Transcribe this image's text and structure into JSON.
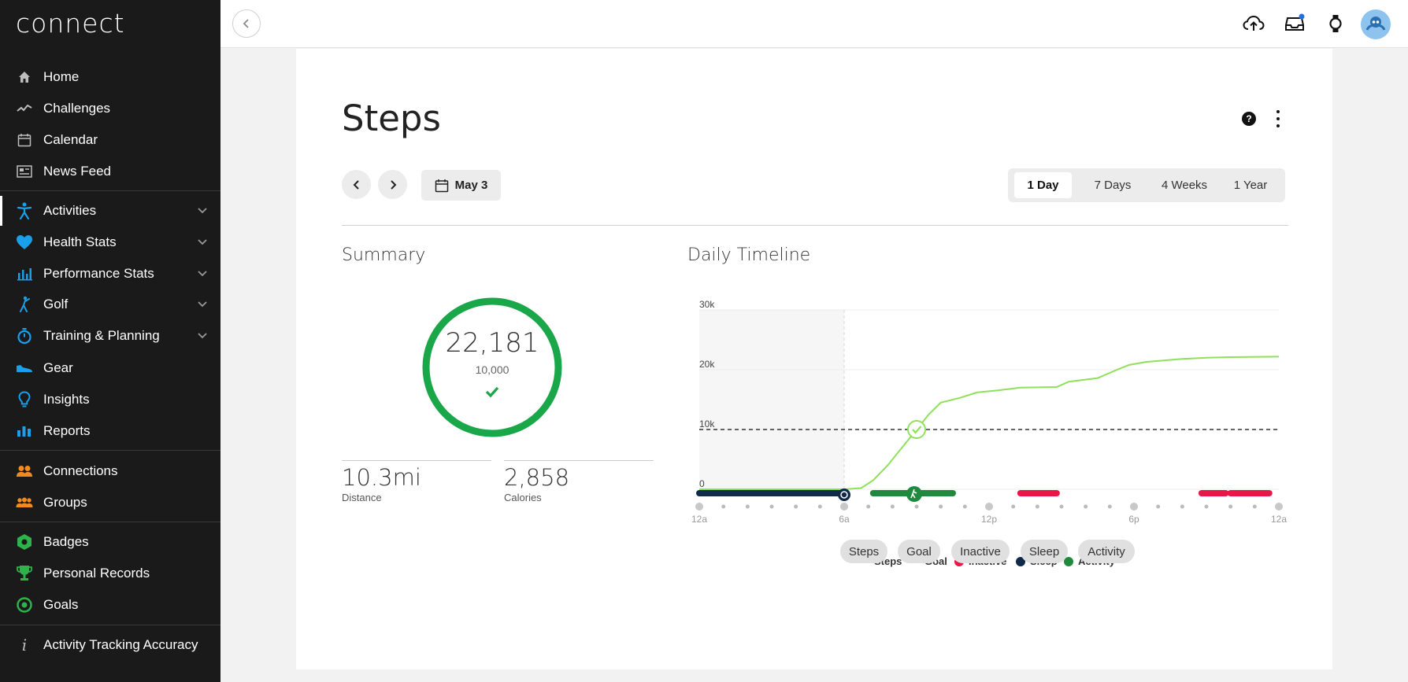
{
  "brand": "connect",
  "sidebar": {
    "items": [
      {
        "label": "Home",
        "icon": "home-icon"
      },
      {
        "label": "Challenges",
        "icon": "challenges-icon"
      },
      {
        "label": "Calendar",
        "icon": "calendar-icon"
      },
      {
        "label": "News Feed",
        "icon": "news-feed-icon"
      },
      {
        "label": "Activities",
        "icon": "activities-icon",
        "expandable": true,
        "active": true
      },
      {
        "label": "Health Stats",
        "icon": "heart-icon",
        "expandable": true
      },
      {
        "label": "Performance Stats",
        "icon": "bar-chart-icon",
        "expandable": true
      },
      {
        "label": "Golf",
        "icon": "golf-icon",
        "expandable": true
      },
      {
        "label": "Training & Planning",
        "icon": "stopwatch-icon",
        "expandable": true
      },
      {
        "label": "Gear",
        "icon": "shoe-icon"
      },
      {
        "label": "Insights",
        "icon": "lightbulb-icon"
      },
      {
        "label": "Reports",
        "icon": "reports-icon"
      },
      {
        "label": "Connections",
        "icon": "connections-icon"
      },
      {
        "label": "Groups",
        "icon": "groups-icon"
      },
      {
        "label": "Badges",
        "icon": "badge-icon"
      },
      {
        "label": "Personal Records",
        "icon": "trophy-icon"
      },
      {
        "label": "Goals",
        "icon": "target-icon"
      },
      {
        "label": "Activity Tracking Accuracy",
        "icon": "info-icon"
      }
    ]
  },
  "colors": {
    "sidebar_bg": "#1a1a1a",
    "accent_blue": "#1a9fea",
    "orange": "#f18a21",
    "green": "#2db34a",
    "steps_line": "#8fe05a",
    "inactive": "#e8174a",
    "sleep": "#0f2a4a",
    "activity": "#1f8a3e",
    "ring": "#19a74a"
  },
  "page": {
    "title": "Steps",
    "date": "May 3",
    "ranges": [
      "1 Day",
      "7 Days",
      "4 Weeks",
      "1 Year"
    ],
    "active_range": "1 Day"
  },
  "summary": {
    "title": "Summary",
    "steps": "22,181",
    "goal": "10,000",
    "distance": "10.3mi",
    "distance_label": "Distance",
    "calories": "2,858",
    "calories_label": "Calories"
  },
  "timeline": {
    "title": "Daily Timeline",
    "legend": [
      "Steps",
      "Goal",
      "Inactive",
      "Sleep",
      "Activity"
    ],
    "filters": [
      "Steps",
      "Goal",
      "Inactive",
      "Sleep",
      "Activity"
    ]
  },
  "chart_data": {
    "type": "line",
    "x_ticks": [
      "12a",
      "6a",
      "12p",
      "6p",
      "12a"
    ],
    "y_ticks": [
      "0",
      "10k",
      "20k",
      "30k"
    ],
    "ylim": [
      0,
      30000
    ],
    "xlim_hours": [
      0,
      24
    ],
    "series": [
      {
        "name": "Steps",
        "points": [
          [
            0,
            0
          ],
          [
            6,
            0
          ],
          [
            6.7,
            200
          ],
          [
            7.2,
            1500
          ],
          [
            7.8,
            4000
          ],
          [
            8.5,
            7500
          ],
          [
            9.0,
            10000
          ],
          [
            9.5,
            12500
          ],
          [
            10.0,
            14500
          ],
          [
            10.8,
            15300
          ],
          [
            11.5,
            16200
          ],
          [
            12.5,
            16600
          ],
          [
            13.3,
            17000
          ],
          [
            14.8,
            17100
          ],
          [
            15.3,
            18000
          ],
          [
            16.5,
            18600
          ],
          [
            17.3,
            20000
          ],
          [
            17.8,
            20800
          ],
          [
            18.5,
            21300
          ],
          [
            20,
            21800
          ],
          [
            21,
            22000
          ],
          [
            22,
            22100
          ],
          [
            24,
            22181
          ]
        ]
      }
    ],
    "goal": 10000,
    "goal_met_hour": 9.0,
    "sleep": [
      [
        0,
        6.0
      ]
    ],
    "activity": [
      [
        7.2,
        10.5
      ]
    ],
    "inactive": [
      [
        13.3,
        14.8
      ],
      [
        20.8,
        21.8
      ],
      [
        22.0,
        23.6
      ]
    ]
  },
  "topbar": {
    "icons": [
      "upload-icon",
      "inbox-icon",
      "watch-icon"
    ]
  }
}
